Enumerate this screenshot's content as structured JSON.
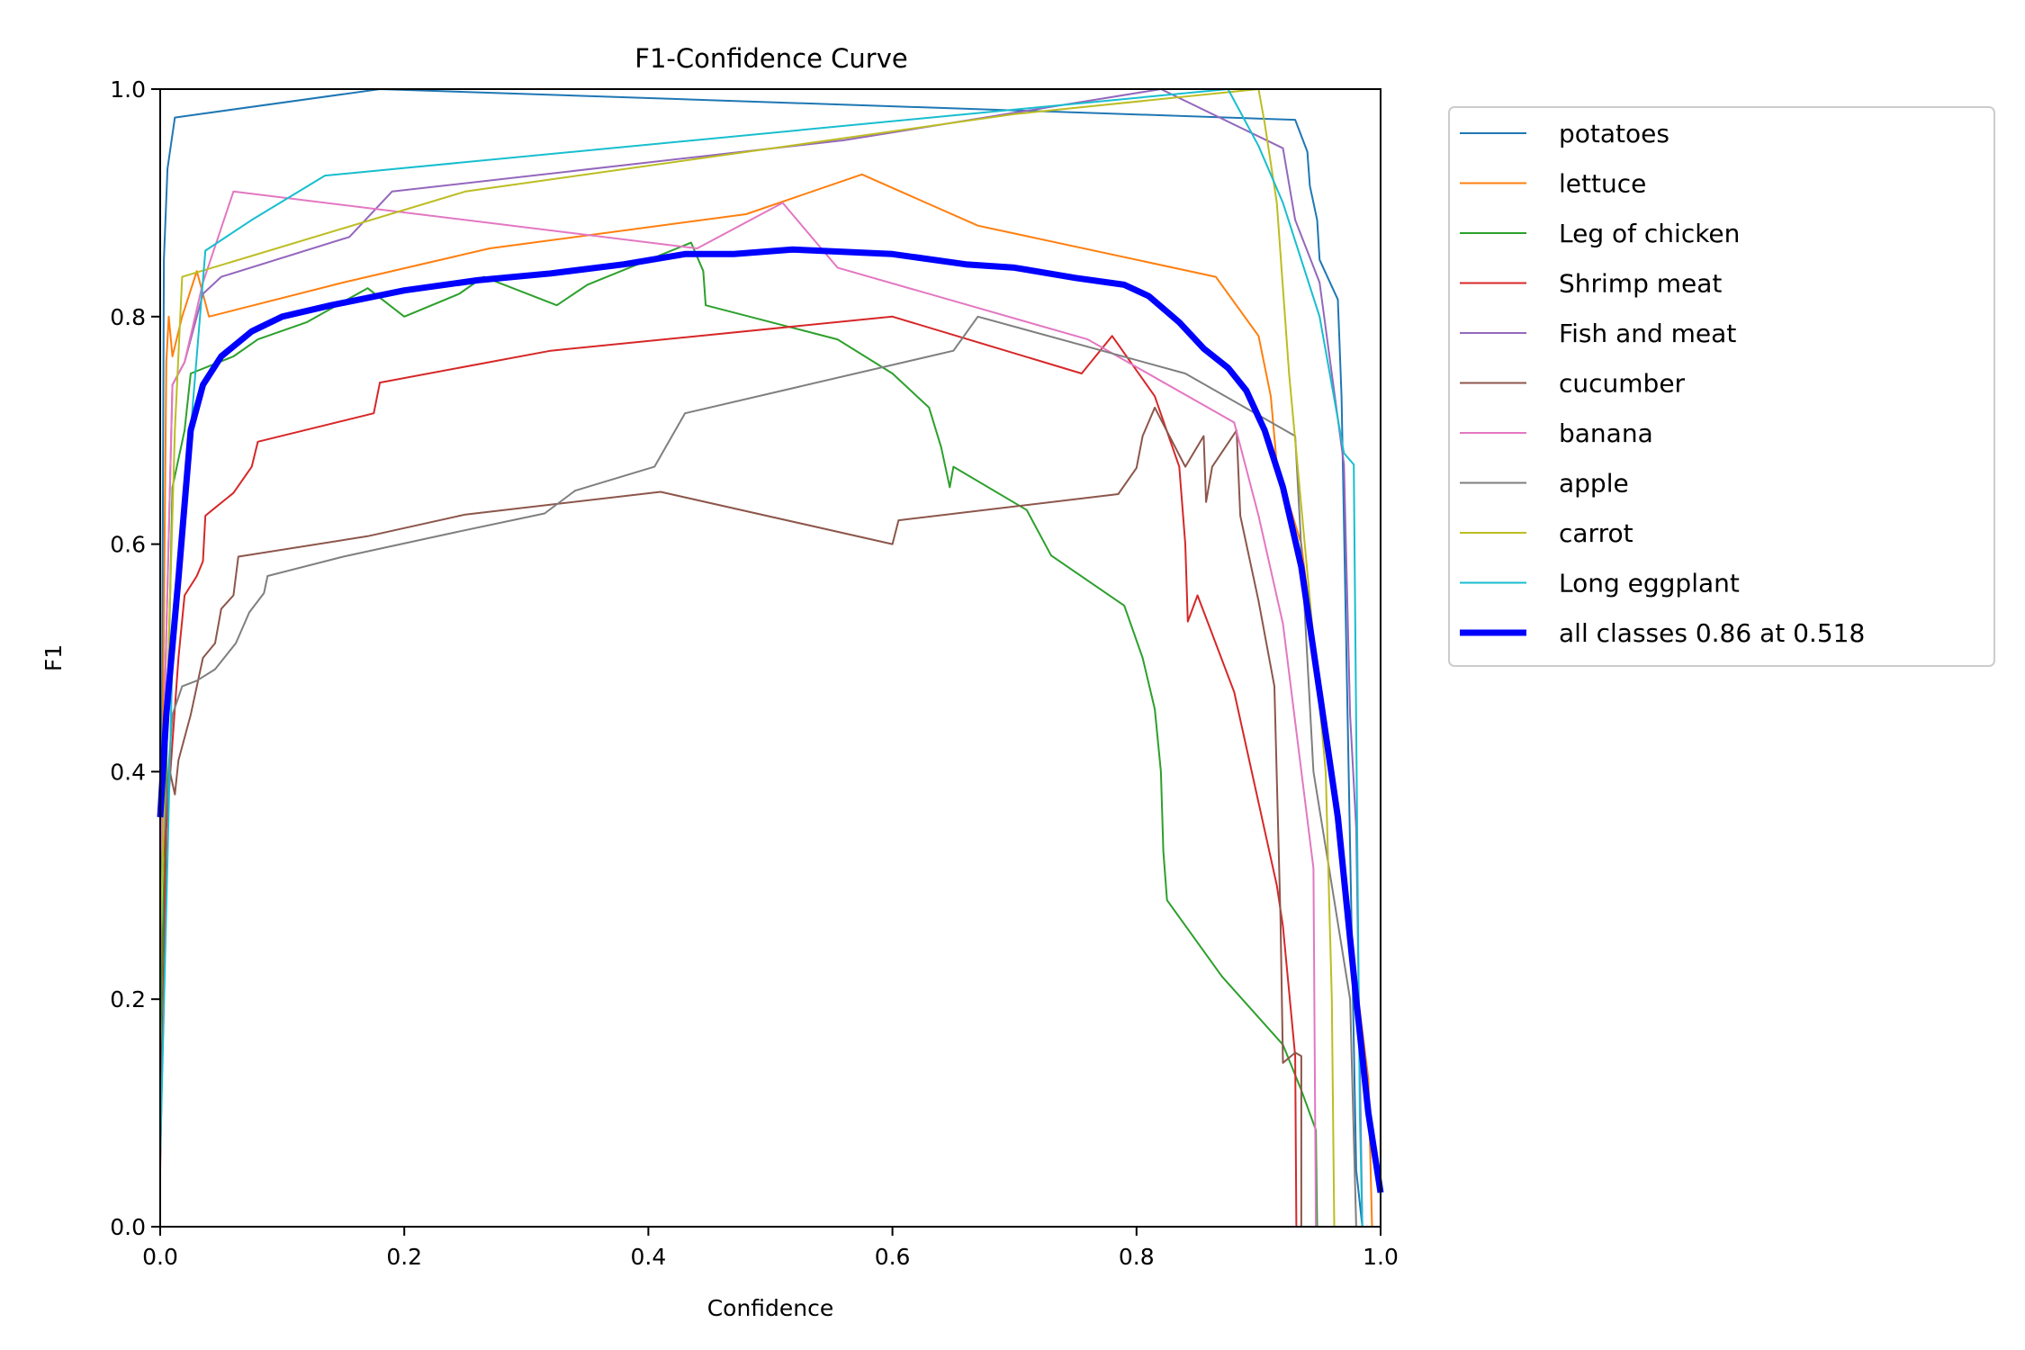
{
  "chart_data": {
    "type": "line",
    "title": "F1-Confidence Curve",
    "xlabel": "Confidence",
    "ylabel": "F1",
    "xlim": [
      0,
      1
    ],
    "ylim": [
      0,
      1
    ],
    "xticks": [
      "0.0",
      "0.2",
      "0.4",
      "0.6",
      "0.8",
      "1.0"
    ],
    "yticks": [
      "0.0",
      "0.2",
      "0.4",
      "0.6",
      "0.8",
      "1.0"
    ],
    "grid": false,
    "legend_position": "outside-right-top",
    "series": [
      {
        "name": "potatoes",
        "color": "#1f77b4",
        "points": [
          [
            0,
            0.06
          ],
          [
            0.003,
            0.85
          ],
          [
            0.006,
            0.93
          ],
          [
            0.012,
            0.975
          ],
          [
            0.18,
            1.0
          ],
          [
            0.93,
            0.973
          ],
          [
            0.94,
            0.945
          ],
          [
            0.942,
            0.915
          ],
          [
            0.948,
            0.885
          ],
          [
            0.95,
            0.85
          ],
          [
            0.965,
            0.815
          ],
          [
            0.968,
            0.73
          ],
          [
            0.98,
            0.05
          ],
          [
            0.985,
            0
          ],
          [
            1,
            0
          ]
        ]
      },
      {
        "name": "lettuce",
        "color": "#ff7f0e",
        "points": [
          [
            0,
            0.2
          ],
          [
            0.005,
            0.76
          ],
          [
            0.007,
            0.8
          ],
          [
            0.01,
            0.765
          ],
          [
            0.018,
            0.8
          ],
          [
            0.03,
            0.84
          ],
          [
            0.04,
            0.8
          ],
          [
            0.15,
            0.83
          ],
          [
            0.27,
            0.86
          ],
          [
            0.48,
            0.89
          ],
          [
            0.575,
            0.925
          ],
          [
            0.67,
            0.88
          ],
          [
            0.865,
            0.835
          ],
          [
            0.9,
            0.783
          ],
          [
            0.91,
            0.73
          ],
          [
            0.915,
            0.67
          ],
          [
            0.935,
            0.6
          ],
          [
            0.99,
            0.13
          ],
          [
            0.993,
            0
          ],
          [
            1,
            0
          ]
        ]
      },
      {
        "name": "Leg of chicken",
        "color": "#2ca02c",
        "points": [
          [
            0,
            0.15
          ],
          [
            0.01,
            0.65
          ],
          [
            0.02,
            0.7
          ],
          [
            0.025,
            0.75
          ],
          [
            0.06,
            0.765
          ],
          [
            0.08,
            0.78
          ],
          [
            0.12,
            0.795
          ],
          [
            0.17,
            0.825
          ],
          [
            0.2,
            0.8
          ],
          [
            0.245,
            0.82
          ],
          [
            0.265,
            0.835
          ],
          [
            0.325,
            0.81
          ],
          [
            0.35,
            0.828
          ],
          [
            0.435,
            0.865
          ],
          [
            0.445,
            0.84
          ],
          [
            0.447,
            0.81
          ],
          [
            0.555,
            0.78
          ],
          [
            0.6,
            0.75
          ],
          [
            0.63,
            0.72
          ],
          [
            0.64,
            0.685
          ],
          [
            0.647,
            0.65
          ],
          [
            0.65,
            0.668
          ],
          [
            0.71,
            0.63
          ],
          [
            0.73,
            0.59
          ],
          [
            0.79,
            0.546
          ],
          [
            0.805,
            0.5
          ],
          [
            0.815,
            0.455
          ],
          [
            0.82,
            0.4
          ],
          [
            0.822,
            0.33
          ],
          [
            0.825,
            0.287
          ],
          [
            0.87,
            0.22
          ],
          [
            0.92,
            0.16
          ],
          [
            0.935,
            0.12
          ],
          [
            0.947,
            0.085
          ],
          [
            0.948,
            0
          ],
          [
            1,
            0
          ]
        ]
      },
      {
        "name": "Shrimp meat",
        "color": "#d62728",
        "points": [
          [
            0,
            0.05
          ],
          [
            0.005,
            0.35
          ],
          [
            0.015,
            0.5
          ],
          [
            0.02,
            0.555
          ],
          [
            0.03,
            0.572
          ],
          [
            0.035,
            0.585
          ],
          [
            0.037,
            0.625
          ],
          [
            0.045,
            0.632
          ],
          [
            0.06,
            0.645
          ],
          [
            0.075,
            0.668
          ],
          [
            0.08,
            0.69
          ],
          [
            0.175,
            0.715
          ],
          [
            0.18,
            0.742
          ],
          [
            0.32,
            0.77
          ],
          [
            0.6,
            0.8
          ],
          [
            0.755,
            0.75
          ],
          [
            0.78,
            0.783
          ],
          [
            0.815,
            0.73
          ],
          [
            0.835,
            0.668
          ],
          [
            0.84,
            0.6
          ],
          [
            0.842,
            0.532
          ],
          [
            0.85,
            0.555
          ],
          [
            0.88,
            0.47
          ],
          [
            0.915,
            0.3
          ],
          [
            0.92,
            0.264
          ],
          [
            0.93,
            0.15
          ],
          [
            0.931,
            0
          ],
          [
            1,
            0
          ]
        ]
      },
      {
        "name": "Fish and meat",
        "color": "#9467bd",
        "points": [
          [
            0,
            0.3
          ],
          [
            0.01,
            0.74
          ],
          [
            0.02,
            0.76
          ],
          [
            0.035,
            0.82
          ],
          [
            0.05,
            0.835
          ],
          [
            0.155,
            0.87
          ],
          [
            0.19,
            0.91
          ],
          [
            0.56,
            0.955
          ],
          [
            0.82,
            1.0
          ],
          [
            0.92,
            0.948
          ],
          [
            0.93,
            0.885
          ],
          [
            0.95,
            0.83
          ],
          [
            0.97,
            0.67
          ],
          [
            0.975,
            0.45
          ],
          [
            0.98,
            0.35
          ],
          [
            0.985,
            0
          ],
          [
            1,
            0
          ]
        ]
      },
      {
        "name": "cucumber",
        "color": "#8c564b",
        "points": [
          [
            0,
            0.3
          ],
          [
            0.008,
            0.4
          ],
          [
            0.012,
            0.38
          ],
          [
            0.015,
            0.41
          ],
          [
            0.025,
            0.45
          ],
          [
            0.035,
            0.5
          ],
          [
            0.045,
            0.513
          ],
          [
            0.05,
            0.543
          ],
          [
            0.06,
            0.555
          ],
          [
            0.064,
            0.589
          ],
          [
            0.17,
            0.607
          ],
          [
            0.25,
            0.626
          ],
          [
            0.41,
            0.646
          ],
          [
            0.6,
            0.6
          ],
          [
            0.605,
            0.621
          ],
          [
            0.785,
            0.644
          ],
          [
            0.8,
            0.667
          ],
          [
            0.805,
            0.695
          ],
          [
            0.815,
            0.72
          ],
          [
            0.84,
            0.668
          ],
          [
            0.855,
            0.695
          ],
          [
            0.857,
            0.637
          ],
          [
            0.862,
            0.668
          ],
          [
            0.882,
            0.7
          ],
          [
            0.885,
            0.625
          ],
          [
            0.9,
            0.55
          ],
          [
            0.913,
            0.475
          ],
          [
            0.918,
            0.27
          ],
          [
            0.92,
            0.144
          ],
          [
            0.93,
            0.153
          ],
          [
            0.935,
            0.15
          ],
          [
            0.935,
            0
          ],
          [
            1,
            0
          ]
        ]
      },
      {
        "name": "banana",
        "color": "#e377c2",
        "points": [
          [
            0,
            0.3
          ],
          [
            0.01,
            0.74
          ],
          [
            0.02,
            0.76
          ],
          [
            0.035,
            0.83
          ],
          [
            0.06,
            0.91
          ],
          [
            0.44,
            0.86
          ],
          [
            0.51,
            0.9
          ],
          [
            0.555,
            0.843
          ],
          [
            0.76,
            0.78
          ],
          [
            0.88,
            0.707
          ],
          [
            0.9,
            0.625
          ],
          [
            0.92,
            0.53
          ],
          [
            0.945,
            0.315
          ],
          [
            0.947,
            0
          ],
          [
            1,
            0
          ]
        ]
      },
      {
        "name": "apple",
        "color": "#7f7f7f",
        "points": [
          [
            0,
            0.3
          ],
          [
            0.01,
            0.45
          ],
          [
            0.018,
            0.475
          ],
          [
            0.03,
            0.48
          ],
          [
            0.045,
            0.49
          ],
          [
            0.062,
            0.513
          ],
          [
            0.073,
            0.54
          ],
          [
            0.085,
            0.557
          ],
          [
            0.088,
            0.572
          ],
          [
            0.15,
            0.589
          ],
          [
            0.24,
            0.61
          ],
          [
            0.315,
            0.627
          ],
          [
            0.34,
            0.647
          ],
          [
            0.405,
            0.668
          ],
          [
            0.43,
            0.715
          ],
          [
            0.65,
            0.77
          ],
          [
            0.67,
            0.8
          ],
          [
            0.84,
            0.75
          ],
          [
            0.93,
            0.695
          ],
          [
            0.945,
            0.4
          ],
          [
            0.96,
            0.3
          ],
          [
            0.975,
            0.2
          ],
          [
            0.98,
            0
          ],
          [
            1,
            0
          ]
        ]
      },
      {
        "name": "carrot",
        "color": "#bcbd22",
        "points": [
          [
            0,
            0.25
          ],
          [
            0.012,
            0.7
          ],
          [
            0.018,
            0.835
          ],
          [
            0.25,
            0.91
          ],
          [
            0.7,
            0.978
          ],
          [
            0.9,
            1.0
          ],
          [
            0.905,
            0.97
          ],
          [
            0.915,
            0.9
          ],
          [
            0.925,
            0.75
          ],
          [
            0.955,
            0.4
          ],
          [
            0.96,
            0.2
          ],
          [
            0.962,
            0
          ],
          [
            1,
            0
          ]
        ]
      },
      {
        "name": "Long eggplant",
        "color": "#17becf",
        "points": [
          [
            0,
            0.06
          ],
          [
            0.01,
            0.5
          ],
          [
            0.025,
            0.7
          ],
          [
            0.037,
            0.858
          ],
          [
            0.075,
            0.885
          ],
          [
            0.135,
            0.924
          ],
          [
            0.875,
            1.0
          ],
          [
            0.9,
            0.95
          ],
          [
            0.92,
            0.9
          ],
          [
            0.95,
            0.8
          ],
          [
            0.97,
            0.68
          ],
          [
            0.978,
            0.67
          ],
          [
            0.983,
            0.1
          ],
          [
            0.985,
            0
          ],
          [
            1,
            0
          ]
        ]
      },
      {
        "name": "all classes 0.86 at 0.518",
        "color": "#0000ff",
        "bold": true,
        "points": [
          [
            0,
            0.36
          ],
          [
            0.005,
            0.45
          ],
          [
            0.015,
            0.57
          ],
          [
            0.025,
            0.7
          ],
          [
            0.035,
            0.74
          ],
          [
            0.05,
            0.765
          ],
          [
            0.075,
            0.787
          ],
          [
            0.1,
            0.8
          ],
          [
            0.14,
            0.81
          ],
          [
            0.2,
            0.823
          ],
          [
            0.26,
            0.832
          ],
          [
            0.32,
            0.838
          ],
          [
            0.38,
            0.846
          ],
          [
            0.43,
            0.855
          ],
          [
            0.47,
            0.855
          ],
          [
            0.518,
            0.859
          ],
          [
            0.6,
            0.855
          ],
          [
            0.66,
            0.846
          ],
          [
            0.7,
            0.843
          ],
          [
            0.75,
            0.834
          ],
          [
            0.79,
            0.828
          ],
          [
            0.81,
            0.818
          ],
          [
            0.835,
            0.795
          ],
          [
            0.855,
            0.772
          ],
          [
            0.875,
            0.755
          ],
          [
            0.89,
            0.735
          ],
          [
            0.905,
            0.7
          ],
          [
            0.92,
            0.65
          ],
          [
            0.935,
            0.58
          ],
          [
            0.95,
            0.47
          ],
          [
            0.965,
            0.36
          ],
          [
            0.98,
            0.2
          ],
          [
            0.99,
            0.1
          ],
          [
            1,
            0.03
          ]
        ]
      }
    ]
  }
}
